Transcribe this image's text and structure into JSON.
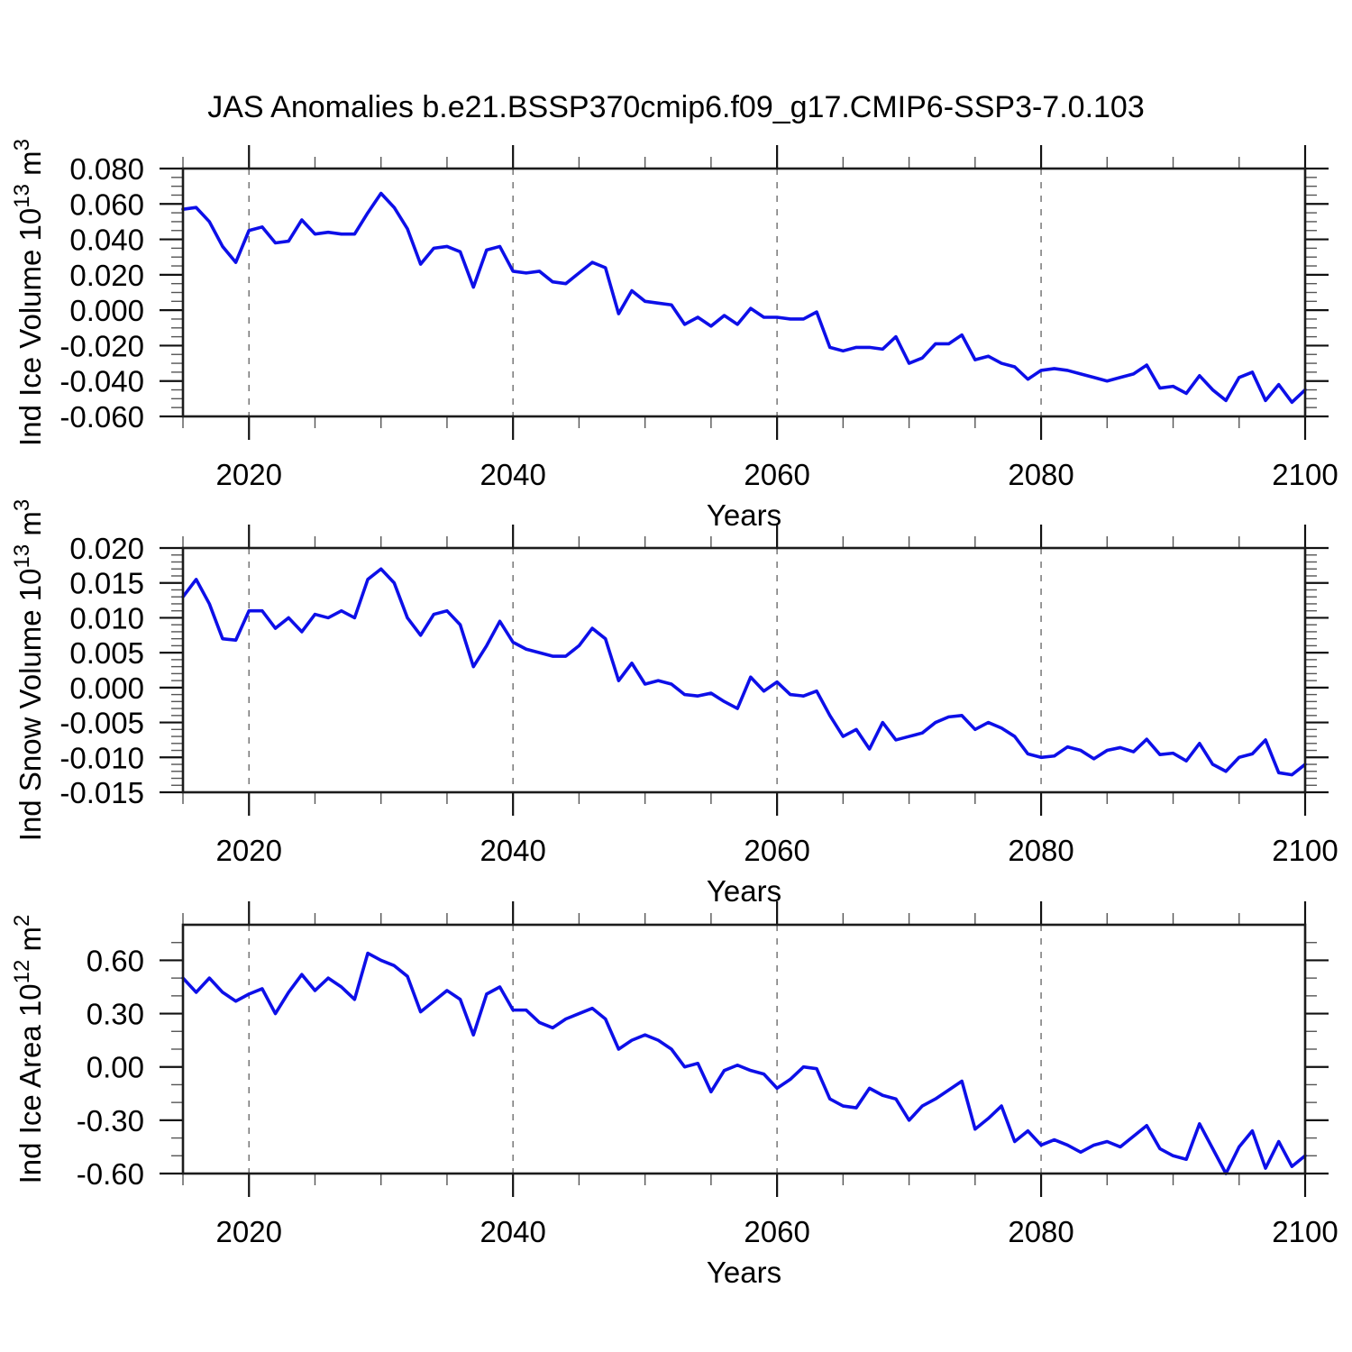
{
  "figure": {
    "title": "JAS Anomalies b.e21.BSSP370cmip6.f09_g17.CMIP6-SSP3-7.0.103",
    "background": "#ffffff"
  },
  "style": {
    "line_color": "#0d0fe8",
    "frame_color": "#1c1c1c",
    "major_tick_color": "#111111",
    "minor_tick_color": "#555555",
    "grid_color": "#777777",
    "text_color": "#000000"
  },
  "chart_data": [
    {
      "type": "line",
      "panel": 1,
      "ylabel_segments": [
        {
          "t": "Ind Ice Volume 10"
        },
        {
          "t": "13",
          "sup": true
        },
        {
          "t": " m"
        },
        {
          "t": "3",
          "sup": true
        }
      ],
      "xlabel": "Years",
      "ylim": [
        -0.06,
        0.08
      ],
      "ytick_major_step": 0.02,
      "ytick_minor_step": 0.005,
      "yticks": [
        {
          "v": 0.08,
          "label": "0.080"
        },
        {
          "v": 0.06,
          "label": "0.060"
        },
        {
          "v": 0.04,
          "label": "0.040"
        },
        {
          "v": 0.02,
          "label": "0.020"
        },
        {
          "v": 0.0,
          "label": "0.000"
        },
        {
          "v": -0.02,
          "label": "-0.020"
        },
        {
          "v": -0.04,
          "label": "-0.040"
        },
        {
          "v": -0.06,
          "label": "-0.060"
        }
      ],
      "xlim": [
        2015,
        2100
      ],
      "xticks": [
        {
          "v": 2020,
          "label": "2020"
        },
        {
          "v": 2040,
          "label": "2040"
        },
        {
          "v": 2060,
          "label": "2060"
        },
        {
          "v": 2080,
          "label": "2080"
        },
        {
          "v": 2100,
          "label": "2100"
        }
      ],
      "xtick_minor_step": 5,
      "grid_x": [
        2020,
        2040,
        2060,
        2080
      ],
      "x_start": 2015,
      "x_step": 1,
      "x_end": 2100,
      "values": [
        0.057,
        0.058,
        0.05,
        0.036,
        0.027,
        0.045,
        0.047,
        0.038,
        0.039,
        0.051,
        0.043,
        0.044,
        0.043,
        0.043,
        0.055,
        0.066,
        0.058,
        0.046,
        0.026,
        0.035,
        0.036,
        0.033,
        0.013,
        0.034,
        0.036,
        0.022,
        0.021,
        0.022,
        0.016,
        0.015,
        0.021,
        0.027,
        0.024,
        -0.002,
        0.011,
        0.005,
        0.004,
        0.003,
        -0.008,
        -0.004,
        -0.009,
        -0.003,
        -0.008,
        0.001,
        -0.004,
        -0.004,
        -0.005,
        -0.005,
        -0.001,
        -0.021,
        -0.023,
        -0.021,
        -0.021,
        -0.022,
        -0.015,
        -0.03,
        -0.027,
        -0.019,
        -0.019,
        -0.014,
        -0.028,
        -0.026,
        -0.03,
        -0.032,
        -0.039,
        -0.034,
        -0.033,
        -0.034,
        -0.036,
        -0.038,
        -0.04,
        -0.038,
        -0.036,
        -0.031,
        -0.044,
        -0.043,
        -0.047,
        -0.037,
        -0.045,
        -0.051,
        -0.038,
        -0.035,
        -0.051,
        -0.042,
        -0.052,
        -0.045
      ]
    },
    {
      "type": "line",
      "panel": 2,
      "ylabel_segments": [
        {
          "t": "Ind Snow Volume 10"
        },
        {
          "t": "13",
          "sup": true
        },
        {
          "t": " m"
        },
        {
          "t": "3",
          "sup": true
        }
      ],
      "xlabel": "Years",
      "ylim": [
        -0.015,
        0.02
      ],
      "ytick_major_step": 0.005,
      "ytick_minor_step": 0.001,
      "yticks": [
        {
          "v": 0.02,
          "label": "0.020"
        },
        {
          "v": 0.015,
          "label": "0.015"
        },
        {
          "v": 0.01,
          "label": "0.010"
        },
        {
          "v": 0.005,
          "label": "0.005"
        },
        {
          "v": 0.0,
          "label": "0.000"
        },
        {
          "v": -0.005,
          "label": "-0.005"
        },
        {
          "v": -0.01,
          "label": "-0.010"
        },
        {
          "v": -0.015,
          "label": "-0.015"
        }
      ],
      "xlim": [
        2015,
        2100
      ],
      "xticks": [
        {
          "v": 2020,
          "label": "2020"
        },
        {
          "v": 2040,
          "label": "2040"
        },
        {
          "v": 2060,
          "label": "2060"
        },
        {
          "v": 2080,
          "label": "2080"
        },
        {
          "v": 2100,
          "label": "2100"
        }
      ],
      "xtick_minor_step": 5,
      "grid_x": [
        2020,
        2040,
        2060,
        2080
      ],
      "x_start": 2015,
      "x_step": 1,
      "x_end": 2100,
      "values": [
        0.013,
        0.0155,
        0.012,
        0.007,
        0.0068,
        0.011,
        0.011,
        0.0085,
        0.01,
        0.008,
        0.0105,
        0.01,
        0.011,
        0.01,
        0.0155,
        0.017,
        0.015,
        0.01,
        0.0075,
        0.0105,
        0.011,
        0.009,
        0.003,
        0.006,
        0.0095,
        0.0065,
        0.0055,
        0.005,
        0.0045,
        0.0045,
        0.006,
        0.0085,
        0.007,
        0.001,
        0.0035,
        0.0005,
        0.001,
        0.0005,
        -0.001,
        -0.0012,
        -0.0008,
        -0.002,
        -0.003,
        0.0015,
        -0.0005,
        0.0008,
        -0.001,
        -0.0012,
        -0.0005,
        -0.004,
        -0.007,
        -0.006,
        -0.0088,
        -0.005,
        -0.0075,
        -0.007,
        -0.0065,
        -0.005,
        -0.0042,
        -0.004,
        -0.006,
        -0.005,
        -0.0058,
        -0.007,
        -0.0095,
        -0.01,
        -0.0098,
        -0.0085,
        -0.009,
        -0.0102,
        -0.009,
        -0.0086,
        -0.0092,
        -0.0074,
        -0.0096,
        -0.0094,
        -0.0105,
        -0.008,
        -0.011,
        -0.012,
        -0.01,
        -0.0095,
        -0.0075,
        -0.0122,
        -0.0125,
        -0.011
      ]
    },
    {
      "type": "line",
      "panel": 3,
      "ylabel_segments": [
        {
          "t": "Ind Ice Area 10"
        },
        {
          "t": "12",
          "sup": true
        },
        {
          "t": " m"
        },
        {
          "t": "2",
          "sup": true
        }
      ],
      "xlabel": "Years",
      "ylim": [
        -0.6,
        0.8
      ],
      "ytick_major_step": 0.3,
      "ytick_minor_step": 0.1,
      "yticks": [
        {
          "v": 0.6,
          "label": "0.60"
        },
        {
          "v": 0.3,
          "label": "0.30"
        },
        {
          "v": 0.0,
          "label": "0.00"
        },
        {
          "v": -0.3,
          "label": "-0.30"
        },
        {
          "v": -0.6,
          "label": "-0.60"
        }
      ],
      "xlim": [
        2015,
        2100
      ],
      "xticks": [
        {
          "v": 2020,
          "label": "2020"
        },
        {
          "v": 2040,
          "label": "2040"
        },
        {
          "v": 2060,
          "label": "2060"
        },
        {
          "v": 2080,
          "label": "2080"
        },
        {
          "v": 2100,
          "label": "2100"
        }
      ],
      "xtick_minor_step": 5,
      "grid_x": [
        2020,
        2040,
        2060,
        2080
      ],
      "x_start": 2015,
      "x_step": 1,
      "x_end": 2100,
      "values": [
        0.5,
        0.42,
        0.5,
        0.42,
        0.37,
        0.41,
        0.44,
        0.3,
        0.42,
        0.52,
        0.43,
        0.5,
        0.45,
        0.38,
        0.64,
        0.6,
        0.57,
        0.51,
        0.31,
        0.37,
        0.43,
        0.38,
        0.18,
        0.41,
        0.45,
        0.32,
        0.32,
        0.25,
        0.22,
        0.27,
        0.3,
        0.33,
        0.27,
        0.1,
        0.15,
        0.18,
        0.15,
        0.1,
        0.0,
        0.02,
        -0.14,
        -0.02,
        0.01,
        -0.02,
        -0.04,
        -0.12,
        -0.07,
        0.0,
        -0.01,
        -0.18,
        -0.22,
        -0.23,
        -0.12,
        -0.16,
        -0.18,
        -0.3,
        -0.22,
        -0.18,
        -0.13,
        -0.08,
        -0.35,
        -0.29,
        -0.22,
        -0.42,
        -0.36,
        -0.44,
        -0.41,
        -0.44,
        -0.48,
        -0.44,
        -0.42,
        -0.45,
        -0.39,
        -0.33,
        -0.46,
        -0.5,
        -0.52,
        -0.32,
        -0.46,
        -0.6,
        -0.45,
        -0.36,
        -0.57,
        -0.42,
        -0.56,
        -0.5
      ]
    }
  ]
}
